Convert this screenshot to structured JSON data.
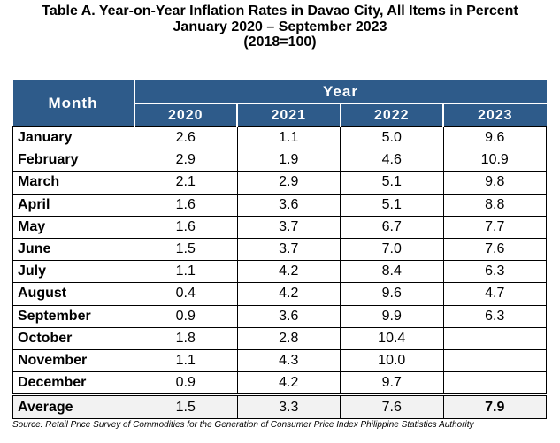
{
  "title": {
    "line1": "Table A. Year-on-Year Inflation Rates in Davao City, All Items in Percent",
    "line2": "January 2020 – September 2023",
    "line3": "(2018=100)"
  },
  "header": {
    "month": "Month",
    "year": "Year",
    "years": [
      "2020",
      "2021",
      "2022",
      "2023"
    ]
  },
  "rows": [
    {
      "month": "January",
      "values": [
        "2.6",
        "1.1",
        "5.0",
        "9.6"
      ]
    },
    {
      "month": "February",
      "values": [
        "2.9",
        "1.9",
        "4.6",
        "10.9"
      ]
    },
    {
      "month": "March",
      "values": [
        "2.1",
        "2.9",
        "5.1",
        "9.8"
      ]
    },
    {
      "month": "April",
      "values": [
        "1.6",
        "3.6",
        "5.1",
        "8.8"
      ]
    },
    {
      "month": "May",
      "values": [
        "1.6",
        "3.7",
        "6.7",
        "7.7"
      ]
    },
    {
      "month": "June",
      "values": [
        "1.5",
        "3.7",
        "7.0",
        "7.6"
      ]
    },
    {
      "month": "July",
      "values": [
        "1.1",
        "4.2",
        "8.4",
        "6.3"
      ]
    },
    {
      "month": "August",
      "values": [
        "0.4",
        "4.2",
        "9.6",
        "4.7"
      ]
    },
    {
      "month": "September",
      "values": [
        "0.9",
        "3.6",
        "9.9",
        "6.3"
      ]
    },
    {
      "month": "October",
      "values": [
        "1.8",
        "2.8",
        "10.4",
        ""
      ]
    },
    {
      "month": "November",
      "values": [
        "1.1",
        "4.3",
        "10.0",
        ""
      ]
    },
    {
      "month": "December",
      "values": [
        "0.9",
        "4.2",
        "9.7",
        ""
      ]
    }
  ],
  "average": {
    "label": "Average",
    "values": [
      "1.5",
      "3.3",
      "7.6",
      "7.9"
    ]
  },
  "source": "Source: Retail Price Survey of Commodities for the Generation of Consumer Price Index Philippine Statistics Authority",
  "colors": {
    "header_bg": "#2e5b8a",
    "header_text": "#ffffff"
  }
}
